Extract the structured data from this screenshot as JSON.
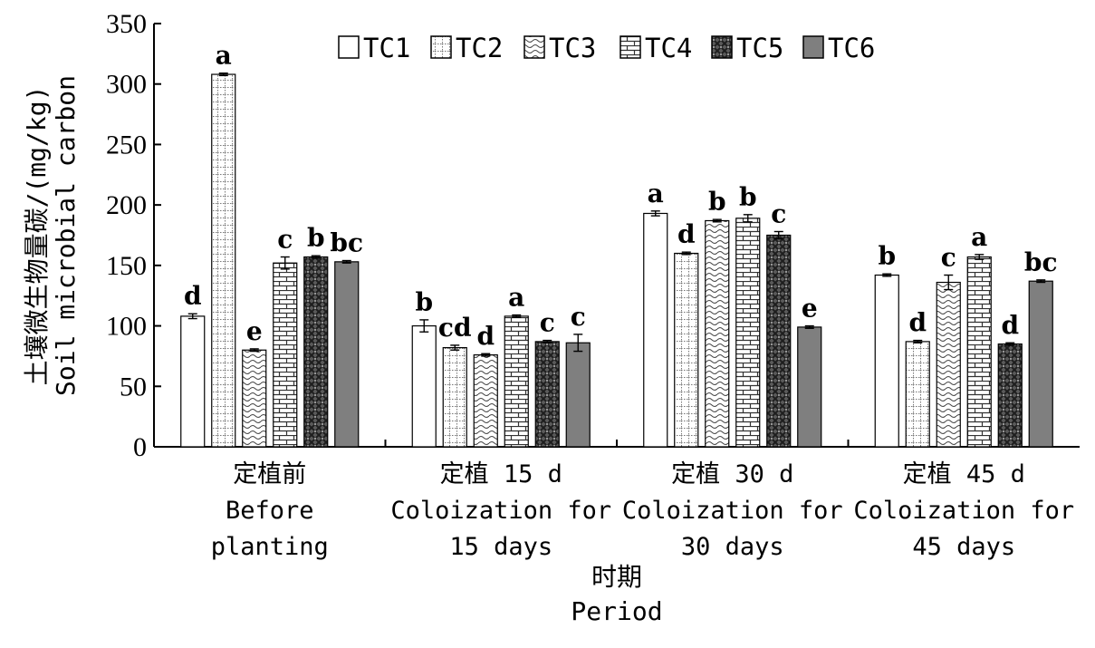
{
  "chart_data": {
    "type": "bar",
    "ylim": [
      0,
      350
    ],
    "yticks": [
      0,
      50,
      100,
      150,
      200,
      250,
      300,
      350
    ],
    "ylabel_lines": [
      "土壤微生物量碳/(mg/kg)",
      "Soil microbial carbon"
    ],
    "xlabel_lines": [
      "时期",
      "Period"
    ],
    "categories": [
      [
        "定植前",
        "Before",
        "planting"
      ],
      [
        "定植 15 d",
        "Coloization for",
        "15 days"
      ],
      [
        "定植 30 d",
        "Coloization for",
        "30 days"
      ],
      [
        "定植 45 d",
        "Coloization for",
        "45 days"
      ]
    ],
    "series": [
      {
        "name": "TC1",
        "pattern": "white",
        "values": [
          108,
          100,
          193,
          142
        ],
        "errors": [
          2,
          5,
          2,
          1
        ],
        "letters": [
          "d",
          "b",
          "a",
          "b"
        ]
      },
      {
        "name": "TC2",
        "pattern": "grid",
        "values": [
          308,
          82,
          160,
          87
        ],
        "errors": [
          1,
          2,
          1,
          1
        ],
        "letters": [
          "a",
          "cd",
          "d",
          "d"
        ]
      },
      {
        "name": "TC3",
        "pattern": "wave",
        "values": [
          80,
          76,
          187,
          136
        ],
        "errors": [
          1,
          1,
          1,
          6
        ],
        "letters": [
          "e",
          "d",
          "b",
          "c"
        ]
      },
      {
        "name": "TC4",
        "pattern": "brick",
        "values": [
          152,
          108,
          189,
          157
        ],
        "errors": [
          5,
          1,
          3,
          2
        ],
        "letters": [
          "c",
          "a",
          "b",
          "a"
        ]
      },
      {
        "name": "TC5",
        "pattern": "check",
        "values": [
          157,
          87,
          175,
          85
        ],
        "errors": [
          1,
          1,
          3,
          1
        ],
        "letters": [
          "b",
          "c",
          "c",
          "d"
        ]
      },
      {
        "name": "TC6",
        "pattern": "gray",
        "values": [
          153,
          86,
          99,
          137
        ],
        "errors": [
          1,
          7,
          1,
          1
        ],
        "letters": [
          "bc",
          "c",
          "e",
          "bc"
        ]
      }
    ],
    "legend_position": "top-center",
    "grid": false,
    "error_bars": true
  }
}
